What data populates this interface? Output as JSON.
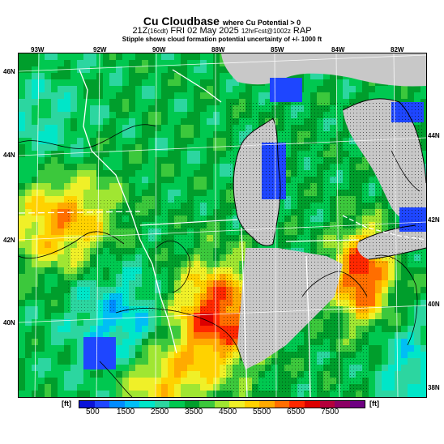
{
  "title": {
    "main": "Cu Cloudbase",
    "qualifier": "where Cu Potential > 0",
    "valid_line_a": "21Z",
    "valid_line_b": "(16cdt)",
    "valid_line_c": "FRI 02 May 2025",
    "valid_line_d": "12hrFcst@1002z",
    "valid_line_e": "RAP",
    "note": "Stipple shows cloud formation potential uncertainty of +/- 1000 ft"
  },
  "axes": {
    "lon_labels": [
      "93W",
      "92W",
      "90W",
      "88W",
      "85W",
      "84W",
      "82W"
    ],
    "lat_labels_left": [
      "46N",
      "44N",
      "42N",
      "40N"
    ],
    "lat_labels_right": [
      "44N",
      "42N",
      "40N",
      "38N"
    ]
  },
  "colorbar": {
    "unit_left": "[ft]",
    "unit_right": "[ft]",
    "ticks": [
      "500",
      "1500",
      "2500",
      "3500",
      "4500",
      "5500",
      "6500",
      "7500"
    ],
    "colors": [
      "#0a14d8",
      "#1e46ff",
      "#008cff",
      "#00bef5",
      "#00e6c8",
      "#2cd6a0",
      "#00c850",
      "#009e2c",
      "#3cc83c",
      "#a0e632",
      "#f0f028",
      "#ffd200",
      "#ffaa00",
      "#ff6e00",
      "#ff2800",
      "#dc0000",
      "#b4003c",
      "#8c0064",
      "#6e0082"
    ]
  },
  "map": {
    "no_data_color": "#c8c8c8",
    "water_color": "#c8c8c8",
    "colormap": [
      "#0a14d8",
      "#1e46ff",
      "#008cff",
      "#00bef5",
      "#00e6c8",
      "#2cd6a0",
      "#00c850",
      "#009e2c",
      "#3cc83c",
      "#a0e632",
      "#f0f028",
      "#ffd200",
      "#ffaa00",
      "#ff6e00",
      "#ff2800",
      "#dc0000",
      "#b4003c"
    ],
    "region": "Upper Midwest / Great Lakes"
  }
}
